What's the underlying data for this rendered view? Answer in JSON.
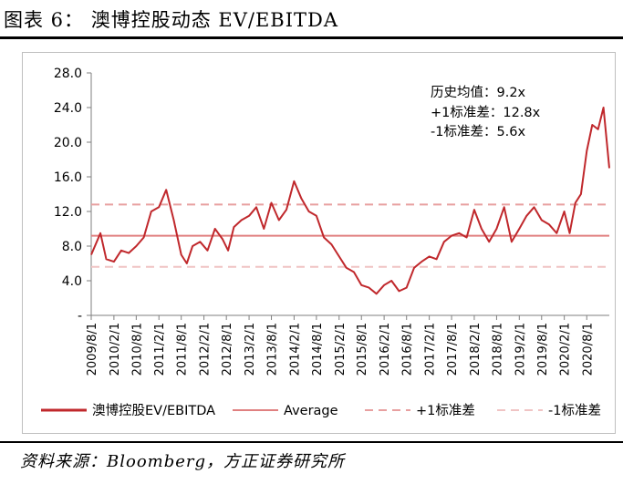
{
  "title": "图表 6：  澳博控股动态 EV/EBITDA",
  "source": "资料来源：Bloomberg，方正证券研究所",
  "annotations": [
    "历史均值：9.2x",
    "+1标准差：12.8x",
    "-1标准差：5.6x"
  ],
  "colors": {
    "series": "#c0282c",
    "average": "#e08080",
    "plus1": "#e8a0a0",
    "minus1": "#f0c4c4"
  },
  "chart_data": {
    "type": "line",
    "ylim": [
      0,
      28
    ],
    "y_ticks": [
      "-",
      "4.0",
      "8.0",
      "12.0",
      "16.0",
      "20.0",
      "24.0",
      "28.0"
    ],
    "y_tick_values": [
      0,
      4,
      8,
      12,
      16,
      20,
      24,
      28
    ],
    "x_range": [
      "2009-08-01",
      "2021-01-31"
    ],
    "x_ticks": [
      "2009/8/1",
      "2010/2/1",
      "2010/8/1",
      "2011/2/1",
      "2011/8/1",
      "2012/2/1",
      "2012/8/1",
      "2013/2/1",
      "2013/8/1",
      "2014/2/1",
      "2014/8/1",
      "2015/2/1",
      "2015/8/1",
      "2016/2/1",
      "2016/8/1",
      "2017/2/1",
      "2017/8/1",
      "2018/2/1",
      "2018/8/1",
      "2019/2/1",
      "2019/8/1",
      "2020/2/1",
      "2020/8/1"
    ],
    "legend_position": "bottom",
    "series": [
      {
        "name": "澳博控股EV/EBITDA",
        "line_style": "solid",
        "x": [
          "2009-08-01",
          "2009-10-15",
          "2009-12-01",
          "2010-02-01",
          "2010-04-01",
          "2010-06-01",
          "2010-08-01",
          "2010-10-01",
          "2010-12-01",
          "2011-02-01",
          "2011-04-01",
          "2011-06-01",
          "2011-08-01",
          "2011-09-15",
          "2011-11-01",
          "2012-01-01",
          "2012-03-01",
          "2012-05-01",
          "2012-07-01",
          "2012-08-15",
          "2012-10-01",
          "2012-12-01",
          "2013-02-01",
          "2013-04-01",
          "2013-06-01",
          "2013-08-01",
          "2013-10-01",
          "2013-12-01",
          "2014-02-01",
          "2014-04-01",
          "2014-06-01",
          "2014-08-01",
          "2014-10-01",
          "2014-12-01",
          "2015-02-01",
          "2015-04-01",
          "2015-06-01",
          "2015-08-01",
          "2015-10-01",
          "2015-12-01",
          "2016-02-01",
          "2016-04-01",
          "2016-06-01",
          "2016-08-01",
          "2016-10-01",
          "2016-12-01",
          "2017-02-01",
          "2017-04-01",
          "2017-06-01",
          "2017-08-01",
          "2017-10-01",
          "2017-12-01",
          "2018-02-01",
          "2018-04-01",
          "2018-06-01",
          "2018-08-01",
          "2018-10-01",
          "2018-12-01",
          "2019-02-01",
          "2019-04-01",
          "2019-06-01",
          "2019-08-01",
          "2019-10-01",
          "2019-12-01",
          "2020-02-01",
          "2020-03-15",
          "2020-05-01",
          "2020-06-15",
          "2020-08-01",
          "2020-09-15",
          "2020-11-01",
          "2020-12-15",
          "2021-01-31"
        ],
        "y": [
          7.0,
          9.5,
          6.5,
          6.2,
          7.5,
          7.2,
          8.0,
          9.0,
          12.0,
          12.5,
          14.5,
          11.0,
          7.0,
          6.0,
          8.0,
          8.5,
          7.5,
          10.0,
          8.8,
          7.5,
          10.2,
          11.0,
          11.5,
          12.5,
          10.0,
          13.0,
          11.0,
          12.2,
          15.5,
          13.5,
          12.0,
          11.5,
          9.0,
          8.2,
          6.8,
          5.5,
          5.0,
          3.5,
          3.2,
          2.5,
          3.5,
          4.0,
          2.8,
          3.2,
          5.5,
          6.2,
          6.8,
          6.5,
          8.5,
          9.2,
          9.5,
          9.0,
          12.2,
          10.0,
          8.5,
          10.0,
          12.5,
          8.5,
          10.0,
          11.5,
          12.5,
          11.0,
          10.5,
          9.5,
          12.0,
          9.5,
          13.0,
          14.0,
          19.0,
          22.0,
          21.5,
          24.0,
          17.0
        ]
      },
      {
        "name": "Average",
        "line_style": "solid",
        "value": 9.2
      },
      {
        "name": "+1标准差",
        "line_style": "dashed",
        "value": 12.8
      },
      {
        "name": "-1标准差",
        "line_style": "dashed",
        "value": 5.6
      }
    ]
  }
}
